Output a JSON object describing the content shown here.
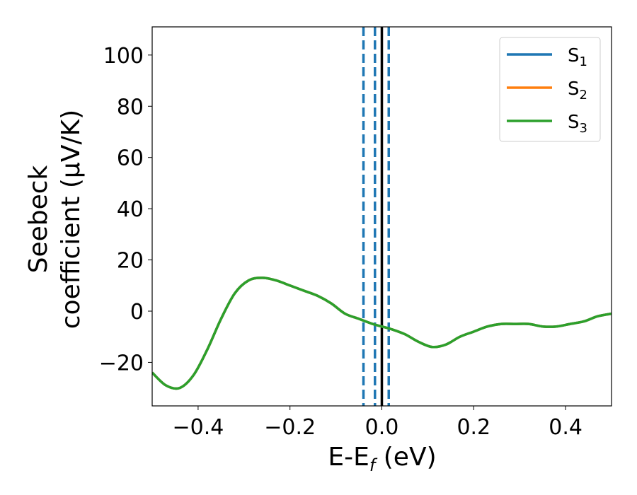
{
  "chart_data": {
    "type": "line",
    "xlabel": "E-E",
    "xlabel_sub": "f",
    "xlabel_unit": " (eV)",
    "ylabel_line1": "Seebeck",
    "ylabel_line2": "coefficient  (μV/K)",
    "xlim": [
      -0.5,
      0.5
    ],
    "ylim": [
      -37,
      111
    ],
    "xticks": [
      -0.4,
      -0.2,
      0.0,
      0.2,
      0.4
    ],
    "xtick_labels": [
      "−0.4",
      "−0.2",
      "0.0",
      "0.2",
      "0.4"
    ],
    "yticks": [
      -20,
      0,
      20,
      40,
      60,
      80,
      100
    ],
    "ytick_labels": [
      "−20",
      "0",
      "20",
      "40",
      "60",
      "80",
      "100"
    ],
    "grid": false,
    "legend_position": "top-right",
    "series": [
      {
        "name": "S",
        "sub": "1",
        "color": "#1f77b4",
        "x": [
          -0.5,
          -0.47,
          -0.44,
          -0.41,
          -0.38,
          -0.35,
          -0.32,
          -0.29,
          -0.26,
          -0.23,
          -0.2,
          -0.17,
          -0.14,
          -0.11,
          -0.08,
          -0.05,
          -0.02,
          0.0,
          0.02,
          0.05,
          0.08,
          0.11,
          0.14,
          0.17,
          0.2,
          0.23,
          0.26,
          0.29,
          0.32,
          0.35,
          0.38,
          0.41,
          0.44,
          0.47,
          0.5
        ],
        "y": [
          -24,
          -29,
          -30,
          -25,
          -15,
          -3,
          7,
          12,
          13,
          12,
          10,
          8,
          6,
          3,
          -1,
          -3,
          -5,
          -6,
          -7,
          -9,
          -12,
          -14,
          -13,
          -10,
          -8,
          -6,
          -5,
          -5,
          -5,
          -6,
          -6,
          -5,
          -4,
          -2,
          -1
        ]
      },
      {
        "name": "S",
        "sub": "2",
        "color": "#ff7f0e",
        "x": [
          -0.5,
          -0.47,
          -0.44,
          -0.41,
          -0.38,
          -0.35,
          -0.32,
          -0.29,
          -0.26,
          -0.23,
          -0.2,
          -0.17,
          -0.14,
          -0.11,
          -0.08,
          -0.05,
          -0.02,
          0.0,
          0.02,
          0.05,
          0.08,
          0.11,
          0.14,
          0.17,
          0.2,
          0.23,
          0.26,
          0.29,
          0.32,
          0.35,
          0.38,
          0.41,
          0.44,
          0.47,
          0.5
        ],
        "y": [
          -24,
          -29,
          -30,
          -25,
          -15,
          -3,
          7,
          12,
          13,
          12,
          10,
          8,
          6,
          3,
          -1,
          -3,
          -5,
          -6,
          -7,
          -9,
          -12,
          -14,
          -13,
          -10,
          -8,
          -6,
          -5,
          -5,
          -5,
          -6,
          -6,
          -5,
          -4,
          -2,
          -1
        ]
      },
      {
        "name": "S",
        "sub": "3",
        "color": "#2ca02c",
        "x": [
          -0.5,
          -0.47,
          -0.44,
          -0.41,
          -0.38,
          -0.35,
          -0.32,
          -0.29,
          -0.26,
          -0.23,
          -0.2,
          -0.17,
          -0.14,
          -0.11,
          -0.08,
          -0.05,
          -0.02,
          0.0,
          0.02,
          0.05,
          0.08,
          0.11,
          0.14,
          0.17,
          0.2,
          0.23,
          0.26,
          0.29,
          0.32,
          0.35,
          0.38,
          0.41,
          0.44,
          0.47,
          0.5
        ],
        "y": [
          -24,
          -29,
          -30,
          -25,
          -15,
          -3,
          7,
          12,
          13,
          12,
          10,
          8,
          6,
          3,
          -1,
          -3,
          -5,
          -6,
          -7,
          -9,
          -12,
          -14,
          -13,
          -10,
          -8,
          -6,
          -5,
          -5,
          -5,
          -6,
          -6,
          -5,
          -4,
          -2,
          -1
        ]
      }
    ],
    "vlines": [
      {
        "x": -0.04,
        "style": "dashed",
        "color": "#1f77b4"
      },
      {
        "x": -0.015,
        "style": "dashed",
        "color": "#1f77b4"
      },
      {
        "x": 0.0,
        "style": "solid",
        "color": "#000000"
      },
      {
        "x": 0.015,
        "style": "dashed",
        "color": "#1f77b4"
      }
    ]
  }
}
